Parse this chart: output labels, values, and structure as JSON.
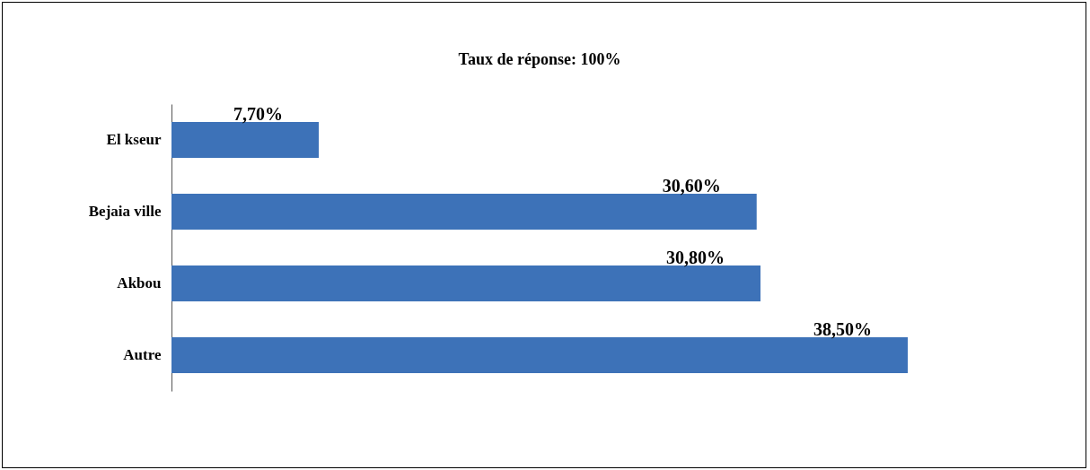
{
  "chart_data": {
    "type": "bar",
    "orientation": "horizontal",
    "title": "Taux de réponse: 100%",
    "categories": [
      "El kseur",
      "Bejaia ville",
      "Akbou",
      "Autre"
    ],
    "values": [
      7.7,
      30.6,
      30.8,
      38.5
    ],
    "value_labels": [
      "7,70%",
      "30,60%",
      "30,80%",
      "38,50%"
    ],
    "color": "#3d72b8"
  }
}
